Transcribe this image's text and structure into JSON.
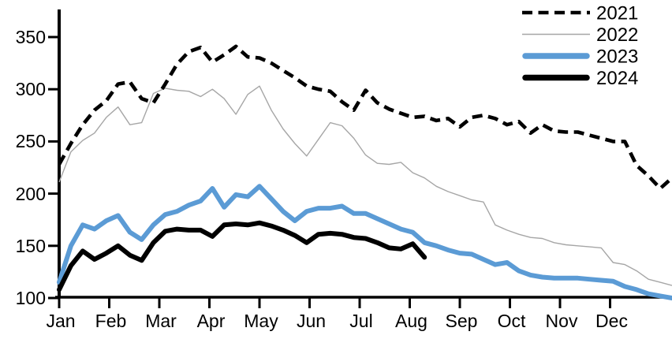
{
  "chart_data": {
    "type": "line",
    "title": "",
    "x_unit": "weekly observations, Jan through Dec",
    "months": [
      "Jan",
      "Feb",
      "Mar",
      "Apr",
      "May",
      "Jun",
      "Jul",
      "Aug",
      "Sep",
      "Oct",
      "Nov",
      "Dec"
    ],
    "y_ticks": [
      350,
      300,
      250,
      200,
      150,
      100
    ],
    "ylim": [
      100,
      375
    ],
    "grid": false,
    "legend_position": "top-right",
    "series": [
      {
        "name": "2021",
        "style": "dashed",
        "color": "#000000",
        "stroke_width": 4.6,
        "values": [
          228,
          248,
          266,
          280,
          289,
          305,
          307,
          291,
          287,
          305,
          324,
          336,
          340,
          326,
          333,
          341,
          331,
          330,
          325,
          318,
          311,
          303,
          300,
          298,
          288,
          280,
          299,
          287,
          281,
          277,
          273,
          274,
          270,
          272,
          264,
          273,
          275,
          272,
          266,
          269,
          258,
          266,
          260,
          259,
          259,
          256,
          253,
          250,
          250,
          227,
          217,
          205,
          215
        ]
      },
      {
        "name": "2022",
        "style": "solid-thin",
        "color": "#a6a6a6",
        "stroke_width": 1.4,
        "values": [
          211,
          240,
          251,
          258,
          273,
          283,
          266,
          268,
          296,
          301,
          299,
          298,
          293,
          300,
          291,
          276,
          295,
          303,
          280,
          262,
          248,
          236,
          252,
          268,
          265,
          253,
          237,
          229,
          228,
          230,
          220,
          215,
          207,
          202,
          198,
          194,
          192,
          170,
          165,
          161,
          158,
          157,
          153,
          151,
          150,
          149,
          148,
          134,
          132,
          126,
          118,
          115,
          112
        ]
      },
      {
        "name": "2023",
        "style": "solid-thick",
        "color": "#5B9BD5",
        "stroke_width": 6,
        "values": [
          115,
          150,
          170,
          166,
          174,
          179,
          163,
          156,
          170,
          180,
          183,
          189,
          193,
          205,
          187,
          199,
          197,
          207,
          195,
          183,
          174,
          183,
          186,
          186,
          188,
          181,
          181,
          176,
          171,
          166,
          163,
          153,
          150,
          146,
          143,
          142,
          137,
          132,
          134,
          126,
          122,
          120,
          119,
          119,
          119,
          118,
          117,
          116,
          111,
          108,
          104,
          102,
          100
        ]
      },
      {
        "name": "2024",
        "style": "solid-thick",
        "color": "#000000",
        "stroke_width": 6,
        "values": [
          108,
          131,
          145,
          137,
          143,
          150,
          141,
          136,
          153,
          164,
          166,
          165,
          165,
          159,
          170,
          171,
          170,
          172,
          169,
          165,
          160,
          153,
          161,
          162,
          161,
          158,
          157,
          153,
          148,
          147,
          152,
          139
        ]
      }
    ]
  }
}
